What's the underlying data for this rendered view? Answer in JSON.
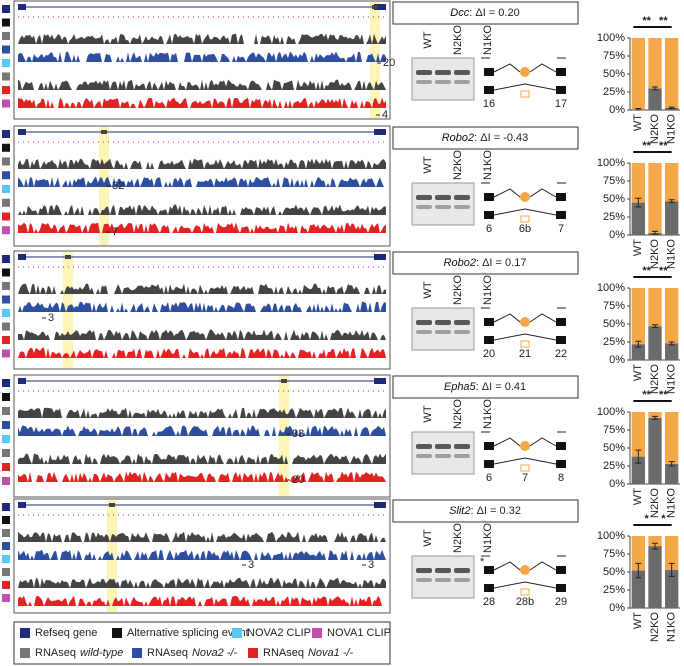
{
  "rows": [
    {
      "gene": "Dcc",
      "stat": ": ΔI = 0.20",
      "lanes": [
        "WT",
        "N2KO",
        "N1KO"
      ],
      "exons": [
        "16",
        "17"
      ],
      "track_labels": [
        "20",
        "4"
      ]
    },
    {
      "gene": "Robo2",
      "stat": ": ΔI = -0.43",
      "lanes": [
        "WT",
        "N2KO",
        "N1KO"
      ],
      "exons": [
        "6",
        "6b",
        "7"
      ],
      "track_labels": [
        "32",
        "7"
      ]
    },
    {
      "gene": "Robo2",
      "stat": ": ΔI = 0.17",
      "lanes": [
        "WT",
        "N2KO",
        "N1KO"
      ],
      "exons": [
        "20",
        "21",
        "22"
      ],
      "track_labels": [
        "3"
      ]
    },
    {
      "gene": "Epha5",
      "stat": ": ΔI = 0.41",
      "lanes": [
        "WT",
        "N2KO",
        "N1KO"
      ],
      "exons": [
        "6",
        "7",
        "8"
      ],
      "track_labels": [
        "93",
        "20"
      ]
    },
    {
      "gene": "Slit2",
      "stat": ": ΔI = 0.32",
      "lanes": [
        "WT",
        "N2KO",
        "N1KO"
      ],
      "exons": [
        "28",
        "28b",
        "29"
      ],
      "gel_note": "*",
      "track_labels": [
        "3",
        "3"
      ]
    }
  ],
  "legend": {
    "refseq": "Refseq gene",
    "splicing": "Alternative splicing event",
    "nova2_clip": "NOVA2 CLIP",
    "nova1_clip": "NOVA1 CLIP",
    "rnaseq": "RNAseq",
    "wt": "wild-type",
    "nova2": "Nova2 -/-",
    "nova1": "Nova1 -/-"
  },
  "chart_data": [
    {
      "type": "bar",
      "categories": [
        "WT",
        "N2KO",
        "N1KO"
      ],
      "category_colors": [
        "#222222",
        "#2e4fa0",
        "#d42a2a"
      ],
      "series": [
        {
          "color": "#6b6b6b",
          "values": [
            1,
            30,
            3
          ],
          "errors": [
            1,
            2,
            1
          ]
        },
        {
          "color": "#f5a84a",
          "values": [
            99,
            70,
            97
          ]
        }
      ],
      "ylim": [
        0,
        100
      ],
      "yticks": [
        {
          "value": 0,
          "label": "0%"
        },
        {
          "value": 25,
          "label": "25%"
        },
        {
          "value": 50,
          "label": "50%"
        },
        {
          "value": 75,
          "label": "75%"
        },
        {
          "value": 100,
          "label": "100%"
        }
      ],
      "annotations": [
        "**",
        "**"
      ]
    },
    {
      "type": "bar",
      "categories": [
        "WT",
        "N2KO",
        "N1KO"
      ],
      "category_colors": [
        "#222222",
        "#2e4fa0",
        "#d42a2a"
      ],
      "series": [
        {
          "color": "#6b6b6b",
          "values": [
            45,
            3,
            47
          ],
          "errors": [
            6,
            2,
            2
          ]
        },
        {
          "color": "#f5a84a",
          "values": [
            55,
            97,
            53
          ]
        }
      ],
      "ylim": [
        0,
        100
      ],
      "yticks": [
        {
          "value": 0,
          "label": "0%"
        },
        {
          "value": 25,
          "label": "25%"
        },
        {
          "value": 50,
          "label": "50%"
        },
        {
          "value": 75,
          "label": "75%"
        },
        {
          "value": 100,
          "label": "100%"
        }
      ],
      "annotations": [
        "**",
        "**"
      ]
    },
    {
      "type": "bar",
      "categories": [
        "WT",
        "N2KO",
        "N1KO"
      ],
      "category_colors": [
        "#222222",
        "#2e4fa0",
        "#d42a2a"
      ],
      "series": [
        {
          "color": "#6b6b6b",
          "values": [
            22,
            47,
            23
          ],
          "errors": [
            4,
            2,
            2
          ]
        },
        {
          "color": "#f5a84a",
          "values": [
            78,
            53,
            77
          ]
        }
      ],
      "ylim": [
        0,
        100
      ],
      "yticks": [
        {
          "value": 0,
          "label": "0%"
        },
        {
          "value": 25,
          "label": "25%"
        },
        {
          "value": 50,
          "label": "50%"
        },
        {
          "value": 75,
          "label": "75%"
        },
        {
          "value": 100,
          "label": "100%"
        }
      ],
      "annotations": [
        "**",
        "**"
      ]
    },
    {
      "type": "bar",
      "categories": [
        "WT",
        "N2KO",
        "N1KO"
      ],
      "category_colors": [
        "#222222",
        "#2e4fa0",
        "#d42a2a"
      ],
      "series": [
        {
          "color": "#6b6b6b",
          "values": [
            38,
            92,
            28
          ],
          "errors": [
            9,
            2,
            3
          ]
        },
        {
          "color": "#f5a84a",
          "values": [
            62,
            8,
            72
          ]
        }
      ],
      "ylim": [
        0,
        100
      ],
      "yticks": [
        {
          "value": 0,
          "label": "0%"
        },
        {
          "value": 25,
          "label": "25%"
        },
        {
          "value": 50,
          "label": "50%"
        },
        {
          "value": 75,
          "label": "75%"
        },
        {
          "value": 100,
          "label": "100%"
        }
      ],
      "annotations": [
        "**",
        "**"
      ]
    },
    {
      "type": "bar",
      "categories": [
        "WT",
        "N2KO",
        "N1KO"
      ],
      "category_colors": [
        "#222222",
        "#2e4fa0",
        "#d42a2a"
      ],
      "series": [
        {
          "color": "#6b6b6b",
          "values": [
            52,
            86,
            53
          ],
          "errors": [
            10,
            4,
            9
          ]
        },
        {
          "color": "#f5a84a",
          "values": [
            48,
            14,
            47
          ]
        }
      ],
      "ylim": [
        0,
        100
      ],
      "yticks": [
        {
          "value": 0,
          "label": "0%"
        },
        {
          "value": 25,
          "label": "25%"
        },
        {
          "value": 50,
          "label": "50%"
        },
        {
          "value": 75,
          "label": "75%"
        },
        {
          "value": 100,
          "label": "100%"
        }
      ],
      "annotations": [
        "*",
        "*"
      ]
    }
  ]
}
